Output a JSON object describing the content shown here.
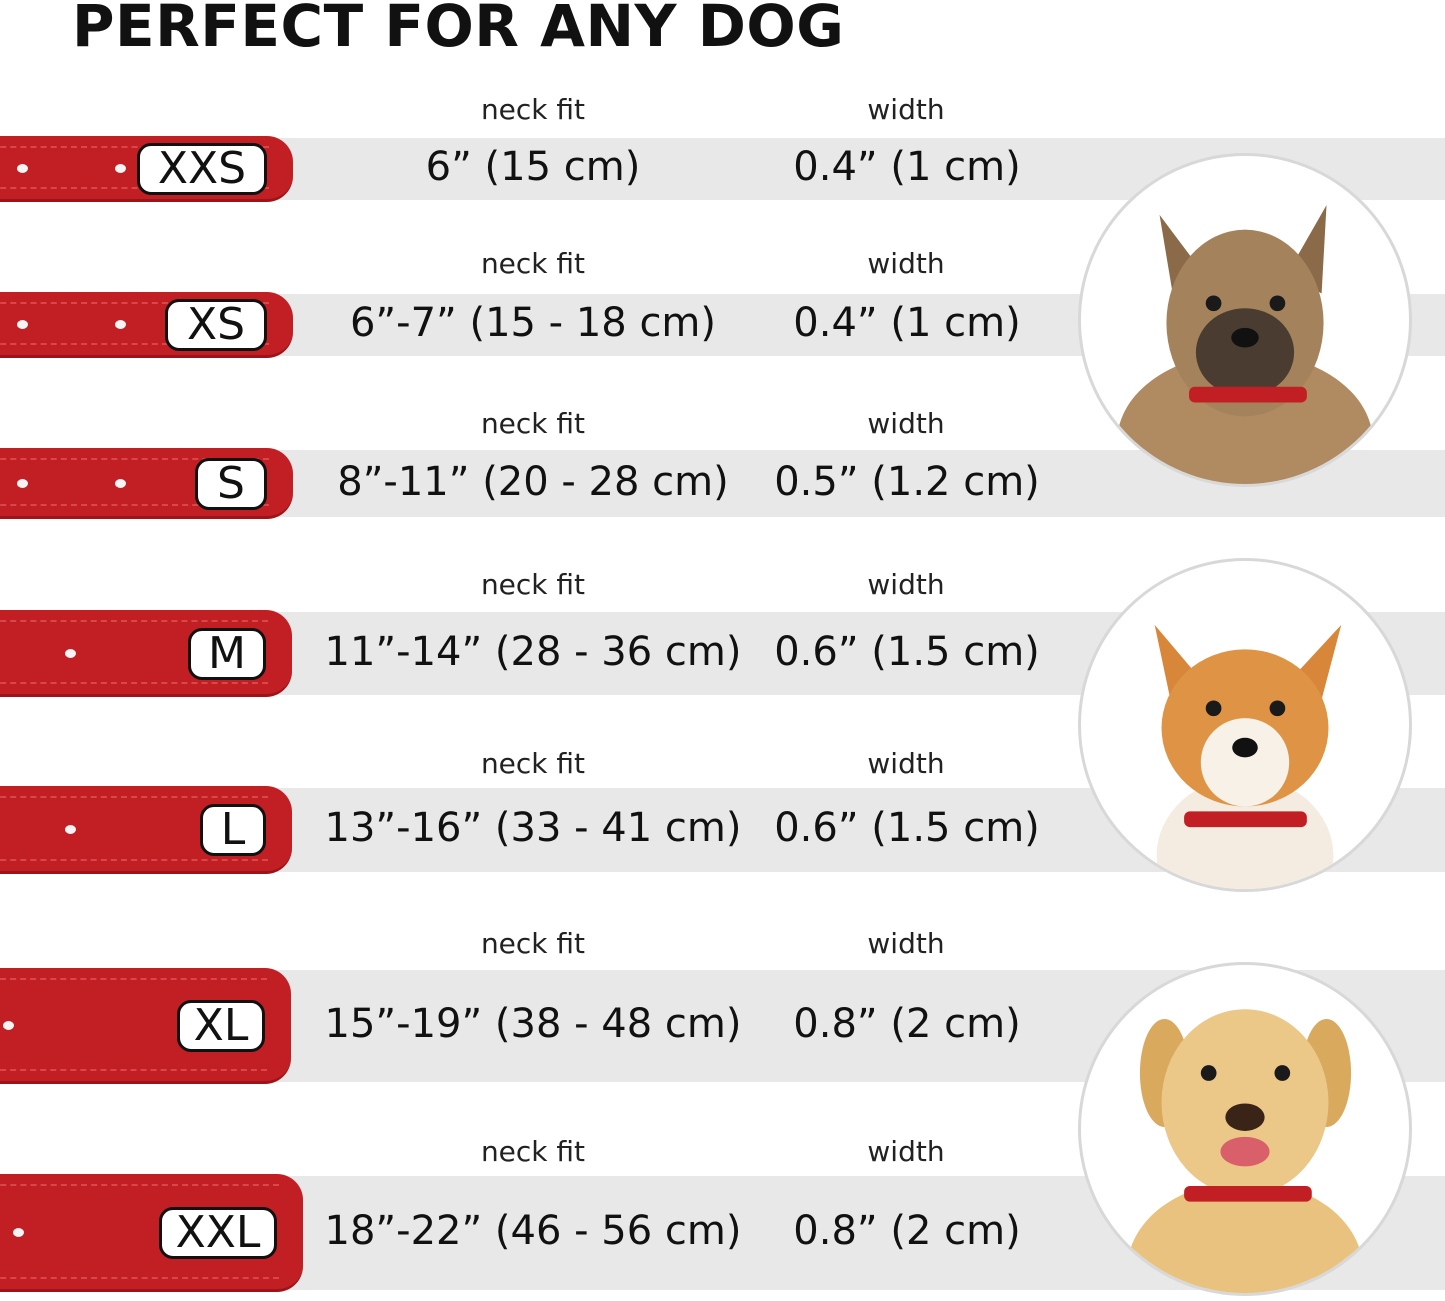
{
  "title": "PERFECT FOR ANY DOG",
  "column_labels": {
    "neck_fit": "neck fit",
    "width": "width"
  },
  "colors": {
    "collar": "#c21f24",
    "band": "#e8e8e8"
  },
  "sizes": [
    {
      "size": "XXS",
      "neck_fit": "6” (15 cm)",
      "width": "0.4” (1 cm)"
    },
    {
      "size": "XS",
      "neck_fit": "6”-7” (15 - 18 cm)",
      "width": "0.4” (1 cm)"
    },
    {
      "size": "S",
      "neck_fit": "8”-11” (20 - 28 cm)",
      "width": "0.5” (1.2 cm)"
    },
    {
      "size": "M",
      "neck_fit": "11”-14” (28 - 36 cm)",
      "width": "0.6” (1.5 cm)"
    },
    {
      "size": "L",
      "neck_fit": "13”-16” (33 - 41 cm)",
      "width": "0.6” (1.5 cm)"
    },
    {
      "size": "XL",
      "neck_fit": "15”-19” (38 - 48 cm)",
      "width": "0.8” (2 cm)"
    },
    {
      "size": "XXL",
      "neck_fit": "18”-22” (46 - 56 cm)",
      "width": "0.8” (2 cm)"
    }
  ],
  "dog_photos": [
    "small-terrier-photo",
    "corgi-photo",
    "labrador-photo"
  ]
}
